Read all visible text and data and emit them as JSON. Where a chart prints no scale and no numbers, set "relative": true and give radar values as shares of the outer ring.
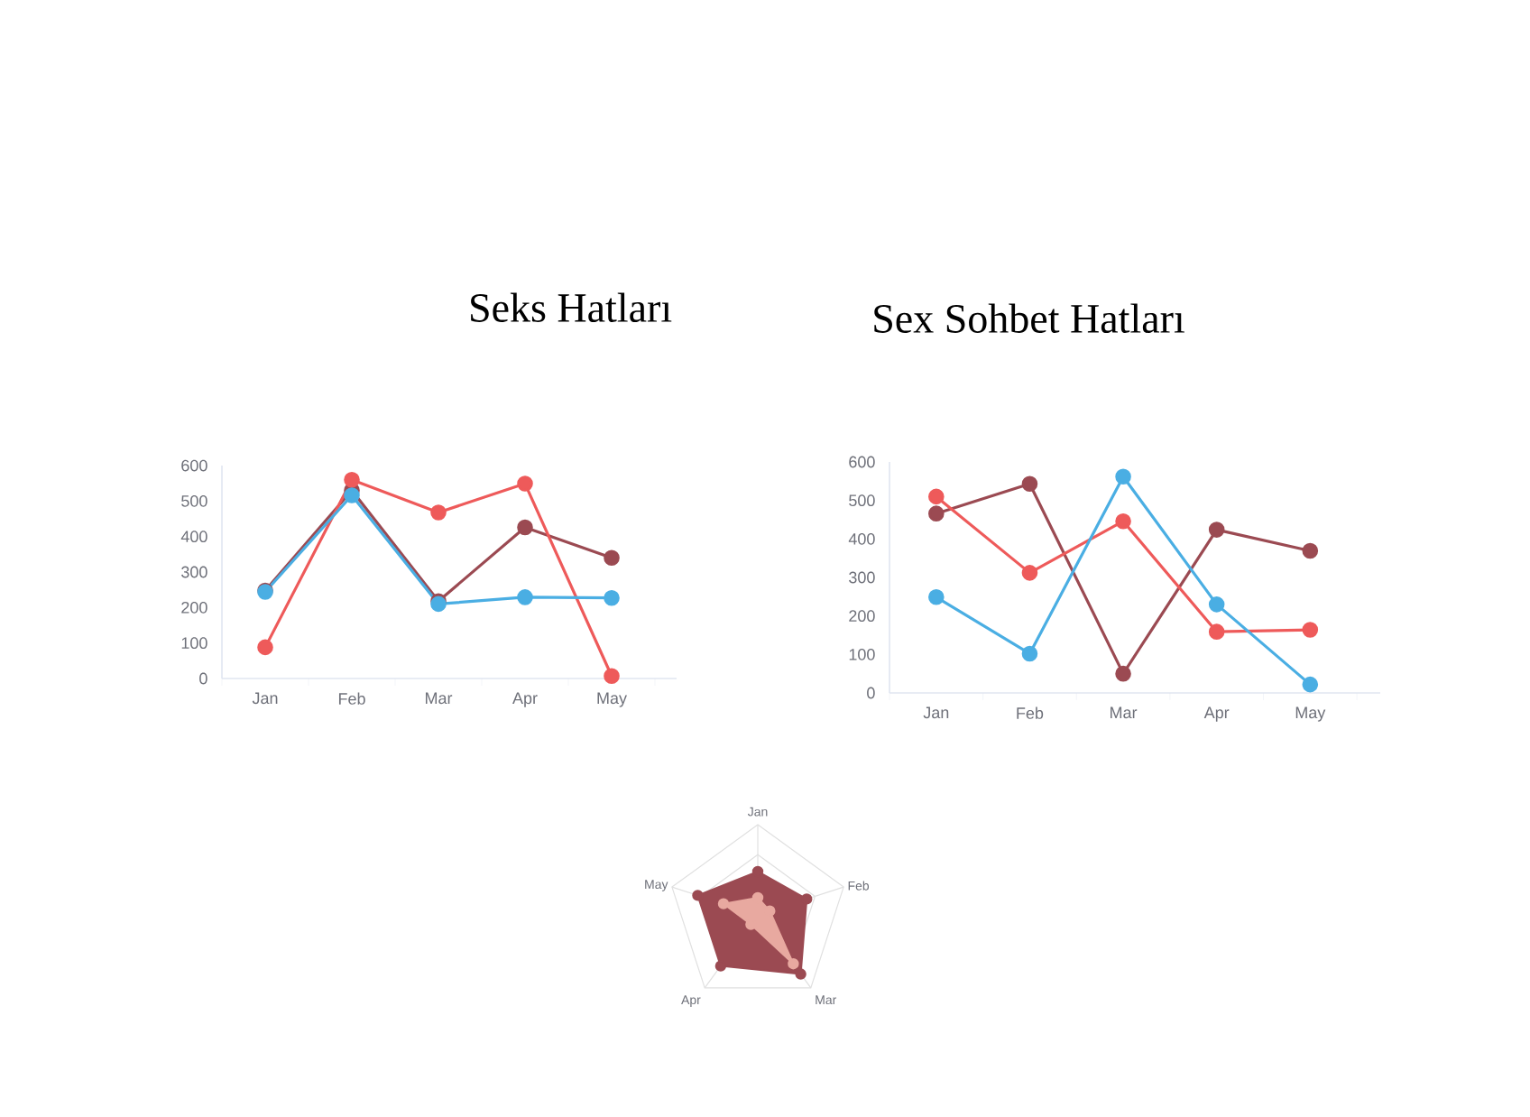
{
  "chart_data": [
    {
      "type": "line",
      "title": "Seks Hatları",
      "categories": [
        "Jan",
        "Feb",
        "Mar",
        "Apr",
        "May"
      ],
      "marker": "circle",
      "ylim": [
        0,
        600
      ],
      "yticks": [
        0,
        100,
        200,
        300,
        400,
        500,
        600
      ],
      "series": [
        {
          "color": "#9b4a52",
          "values": [
            248,
            530,
            218,
            426,
            340
          ]
        },
        {
          "color": "#ee5a5a",
          "values": [
            88,
            560,
            468,
            549,
            7
          ]
        },
        {
          "color": "#4aaee3",
          "values": [
            244,
            516,
            210,
            229,
            227
          ]
        }
      ]
    },
    {
      "type": "line",
      "title": "Sex Sohbet Hatları",
      "categories": [
        "Jan",
        "Feb",
        "Mar",
        "Apr",
        "May"
      ],
      "marker": "circle",
      "ylim": [
        0,
        600
      ],
      "yticks": [
        0,
        100,
        200,
        300,
        400,
        500,
        600
      ],
      "series": [
        {
          "color": "#9b4a52",
          "values": [
            466,
            543,
            50,
            424,
            369
          ]
        },
        {
          "color": "#ee5a5a",
          "values": [
            510,
            312,
            446,
            159,
            164
          ]
        },
        {
          "color": "#4aaee3",
          "values": [
            249,
            102,
            562,
            230,
            22
          ]
        }
      ]
    },
    {
      "type": "radar",
      "categories": [
        "Jan",
        "Feb",
        "Mar",
        "Apr",
        "May"
      ],
      "relative": true,
      "marker": "circle",
      "series": [
        {
          "color": "#9b4a52",
          "values": [
            0.48,
            0.57,
            0.81,
            0.7,
            0.7
          ]
        },
        {
          "color": "#e8a9a0",
          "values": [
            0.19,
            0.14,
            0.67,
            0.13,
            0.4
          ]
        }
      ]
    }
  ]
}
